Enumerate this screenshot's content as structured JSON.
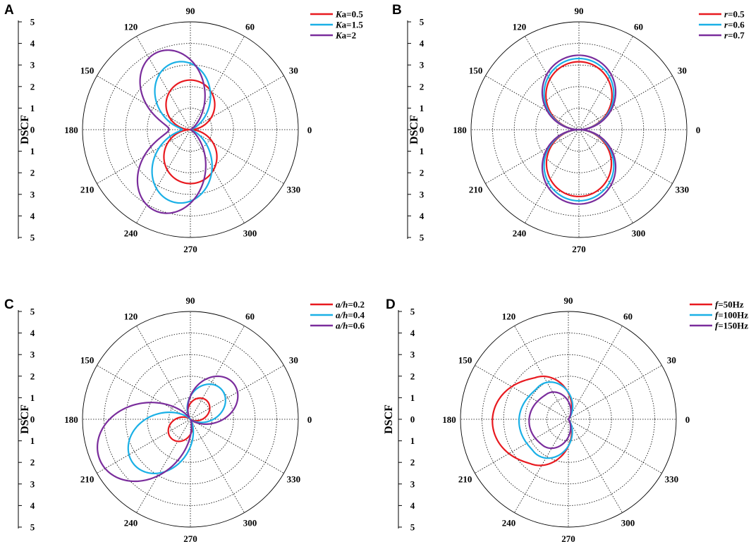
{
  "colors": {
    "red": "#e8191f",
    "cyan": "#1ab0e6",
    "purple": "#7a2d9c"
  },
  "chart_data": [
    {
      "type": "polar-line",
      "panel": "A",
      "ylabel": "DSCF",
      "rlim": [
        0,
        5
      ],
      "radial_ticks": [
        "5",
        "4",
        "3",
        "2",
        "1",
        "0",
        "1",
        "2",
        "3",
        "4",
        "5"
      ],
      "angle_labels": [
        "0",
        "30",
        "60",
        "90",
        "120",
        "150",
        "180",
        "210",
        "240",
        "270",
        "300",
        "330"
      ],
      "series": [
        {
          "name": "Ka=0.5",
          "legend_italic": "K",
          "legend_rest": "a=0.5",
          "color": "#e8191f",
          "lobes": [
            {
              "dir": 90,
              "peak": 2.3,
              "width": 0.95
            },
            {
              "dir": 270,
              "peak": 2.5,
              "width": 0.95
            }
          ]
        },
        {
          "name": "Ka=1.5",
          "legend_italic": "K",
          "legend_rest": "a=1.5",
          "color": "#1ab0e6",
          "lobes": [
            {
              "dir": 102,
              "peak": 3.2,
              "width": 0.55
            },
            {
              "dir": 258,
              "peak": 3.45,
              "width": 0.55
            }
          ]
        },
        {
          "name": "Ka=2",
          "legend_italic": "K",
          "legend_rest": "a=2",
          "color": "#7a2d9c",
          "lobes": [
            {
              "dir": 113,
              "peak": 3.9,
              "width": 0.45
            },
            {
              "dir": 247,
              "peak": 4.1,
              "width": 0.45
            }
          ]
        }
      ]
    },
    {
      "type": "polar-line",
      "panel": "B",
      "ylabel": "DSCF",
      "rlim": [
        0,
        5
      ],
      "radial_ticks": [
        "5",
        "4",
        "3",
        "2",
        "1",
        "0",
        "1",
        "2",
        "3",
        "4",
        "5"
      ],
      "angle_labels": [
        "0",
        "30",
        "60",
        "90",
        "120",
        "150",
        "180",
        "210",
        "240",
        "270",
        "300",
        "330"
      ],
      "series": [
        {
          "name": "r=0.5",
          "legend_italic": "r",
          "legend_rest": "=0.5",
          "color": "#e8191f",
          "lobes": [
            {
              "dir": 90,
              "peak": 3.15,
              "width": 0.92
            },
            {
              "dir": 270,
              "peak": 3.1,
              "width": 0.92
            }
          ]
        },
        {
          "name": "r=0.6",
          "legend_italic": "r",
          "legend_rest": "=0.6",
          "color": "#1ab0e6",
          "lobes": [
            {
              "dir": 90,
              "peak": 3.3,
              "width": 0.94
            },
            {
              "dir": 270,
              "peak": 3.3,
              "width": 0.94
            }
          ]
        },
        {
          "name": "r=0.7",
          "legend_italic": "r",
          "legend_rest": "=0.7",
          "color": "#7a2d9c",
          "lobes": [
            {
              "dir": 90,
              "peak": 3.45,
              "width": 0.96
            },
            {
              "dir": 270,
              "peak": 3.45,
              "width": 0.96
            }
          ]
        }
      ]
    },
    {
      "type": "polar-line",
      "panel": "C",
      "ylabel": "DSCF",
      "rlim": [
        0,
        5
      ],
      "radial_ticks": [
        "5",
        "4",
        "3",
        "2",
        "1",
        "0",
        "1",
        "2",
        "3",
        "4",
        "5"
      ],
      "angle_labels": [
        "0",
        "30",
        "60",
        "90",
        "120",
        "150",
        "180",
        "210",
        "240",
        "270",
        "300",
        "330"
      ],
      "series": [
        {
          "name": "a/h=0.2",
          "legend_italic": "a/h",
          "legend_rest": "=0.2",
          "color": "#e8191f",
          "lobes": [
            {
              "dir": 50,
              "peak": 1.15,
              "width": 0.6
            },
            {
              "dir": 225,
              "peak": 1.25,
              "width": 0.6
            }
          ]
        },
        {
          "name": "a/h=0.4",
          "legend_italic": "a/h",
          "legend_rest": "=0.4",
          "color": "#1ab0e6",
          "lobes": [
            {
              "dir": 45,
              "peak": 2.0,
              "width": 0.55
            },
            {
              "dir": 218,
              "peak": 3.35,
              "width": 0.5
            }
          ]
        },
        {
          "name": "a/h=0.6",
          "legend_italic": "a/h",
          "legend_rest": "=0.6",
          "color": "#7a2d9c",
          "lobes": [
            {
              "dir": 40,
              "peak": 2.6,
              "width": 0.5
            },
            {
              "dir": 205,
              "peak": 4.6,
              "width": 0.48
            }
          ]
        }
      ]
    },
    {
      "type": "polar-line",
      "panel": "D",
      "ylabel": "DSCF",
      "rlim": [
        0,
        5
      ],
      "radial_ticks": [
        "5",
        "4",
        "3",
        "2",
        "1",
        "0",
        "1",
        "2",
        "3",
        "4",
        "5"
      ],
      "angle_labels": [
        "0",
        "30",
        "60",
        "90",
        "120",
        "150",
        "180",
        "210",
        "240",
        "270",
        "300",
        "330"
      ],
      "series": [
        {
          "name": "f=50Hz",
          "legend_italic": "f",
          "legend_rest": "=50Hz",
          "color": "#e8191f",
          "lobes": [
            {
              "dir": 140,
              "peak": 2.55,
              "width": 0.6
            },
            {
              "dir": 218,
              "peak": 2.8,
              "width": 0.6
            }
          ]
        },
        {
          "name": "f=100Hz",
          "legend_italic": "f",
          "legend_rest": "=100Hz",
          "color": "#1ab0e6",
          "lobes": [
            {
              "dir": 132,
              "peak": 2.05,
              "width": 0.6
            },
            {
              "dir": 225,
              "peak": 2.2,
              "width": 0.6
            }
          ]
        },
        {
          "name": "f=150Hz",
          "legend_italic": "f",
          "legend_rest": "=150Hz",
          "color": "#7a2d9c",
          "lobes": [
            {
              "dir": 135,
              "peak": 1.55,
              "width": 0.55
            },
            {
              "dir": 222,
              "peak": 1.7,
              "width": 0.55
            }
          ]
        }
      ]
    }
  ]
}
